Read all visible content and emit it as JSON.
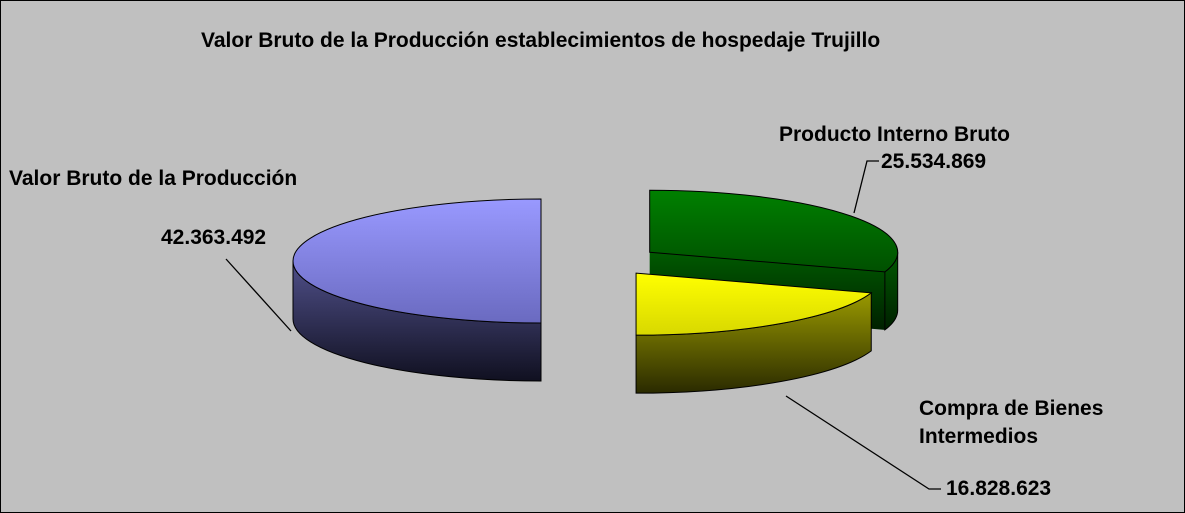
{
  "chart_data": {
    "type": "pie",
    "title": "Valor Bruto de la Producción establecimientos de hospedaje Trujillo",
    "categories": [
      "Producto Interno Bruto",
      "Compra de Bienes Intermedios",
      "Valor Bruto de la Producción"
    ],
    "values": [
      25534869,
      16828623,
      42363492
    ],
    "value_labels": [
      "25.534.869",
      "16.828.623",
      "42.363.492"
    ],
    "colors": [
      "#008000",
      "#ffff00",
      "#9999ff"
    ]
  }
}
